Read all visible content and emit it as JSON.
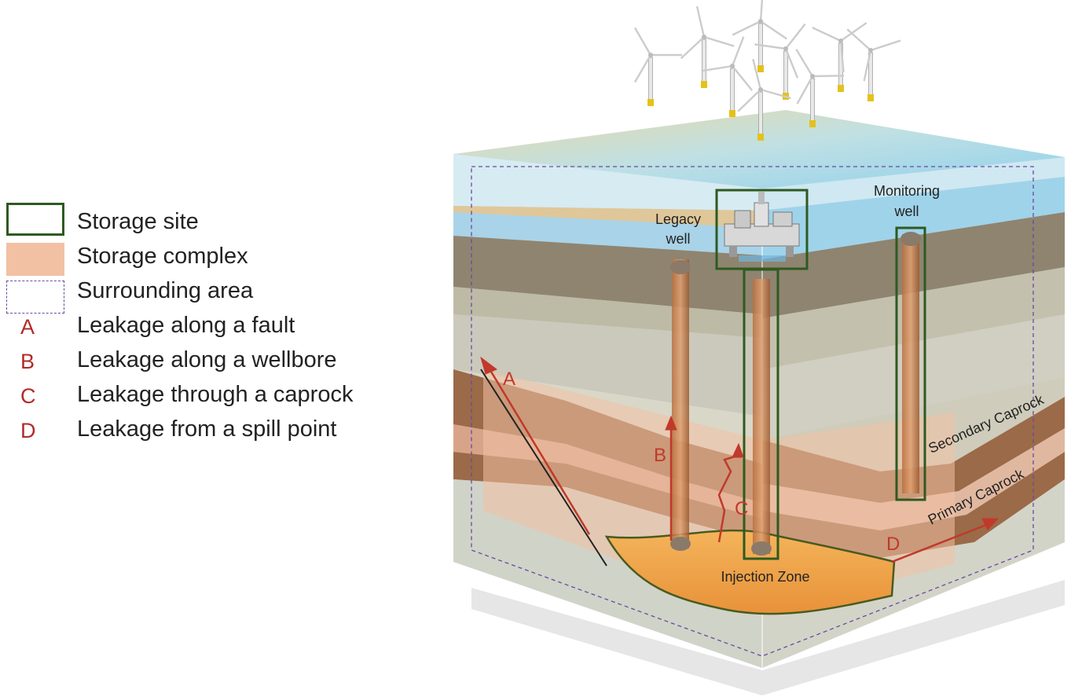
{
  "legend": {
    "items": [
      {
        "key": "site",
        "label": "Storage site"
      },
      {
        "key": "complex",
        "label": "Storage complex"
      },
      {
        "key": "area",
        "label": "Surrounding area"
      },
      {
        "key": "A",
        "letter": "A",
        "label": "Leakage along a fault"
      },
      {
        "key": "B",
        "letter": "B",
        "label": "Leakage along a wellbore"
      },
      {
        "key": "C",
        "letter": "C",
        "label": "Leakage through a caprock"
      },
      {
        "key": "D",
        "letter": "D",
        "label": "Leakage from a spill point"
      }
    ]
  },
  "diagram": {
    "legacy_well": [
      "Legacy",
      "well"
    ],
    "monitoring_well": [
      "Monitoring",
      "well"
    ],
    "injection_zone": "Injection Zone",
    "secondary_caprock": "Secondary Caprock",
    "primary_caprock": "Primary Caprock",
    "letters": {
      "A": "A",
      "B": "B",
      "C": "C",
      "D": "D"
    }
  },
  "colors": {
    "storage_site": "#2e5a20",
    "storage_complex": "#f2c1a4",
    "surrounding_area": "#6a4aa0",
    "leak_arrow": "#c0392b",
    "injection_zone": "#f0a94a",
    "sea": "#9fd3ea"
  },
  "icons": [
    "wind-turbine-icon",
    "offshore-platform-icon"
  ]
}
